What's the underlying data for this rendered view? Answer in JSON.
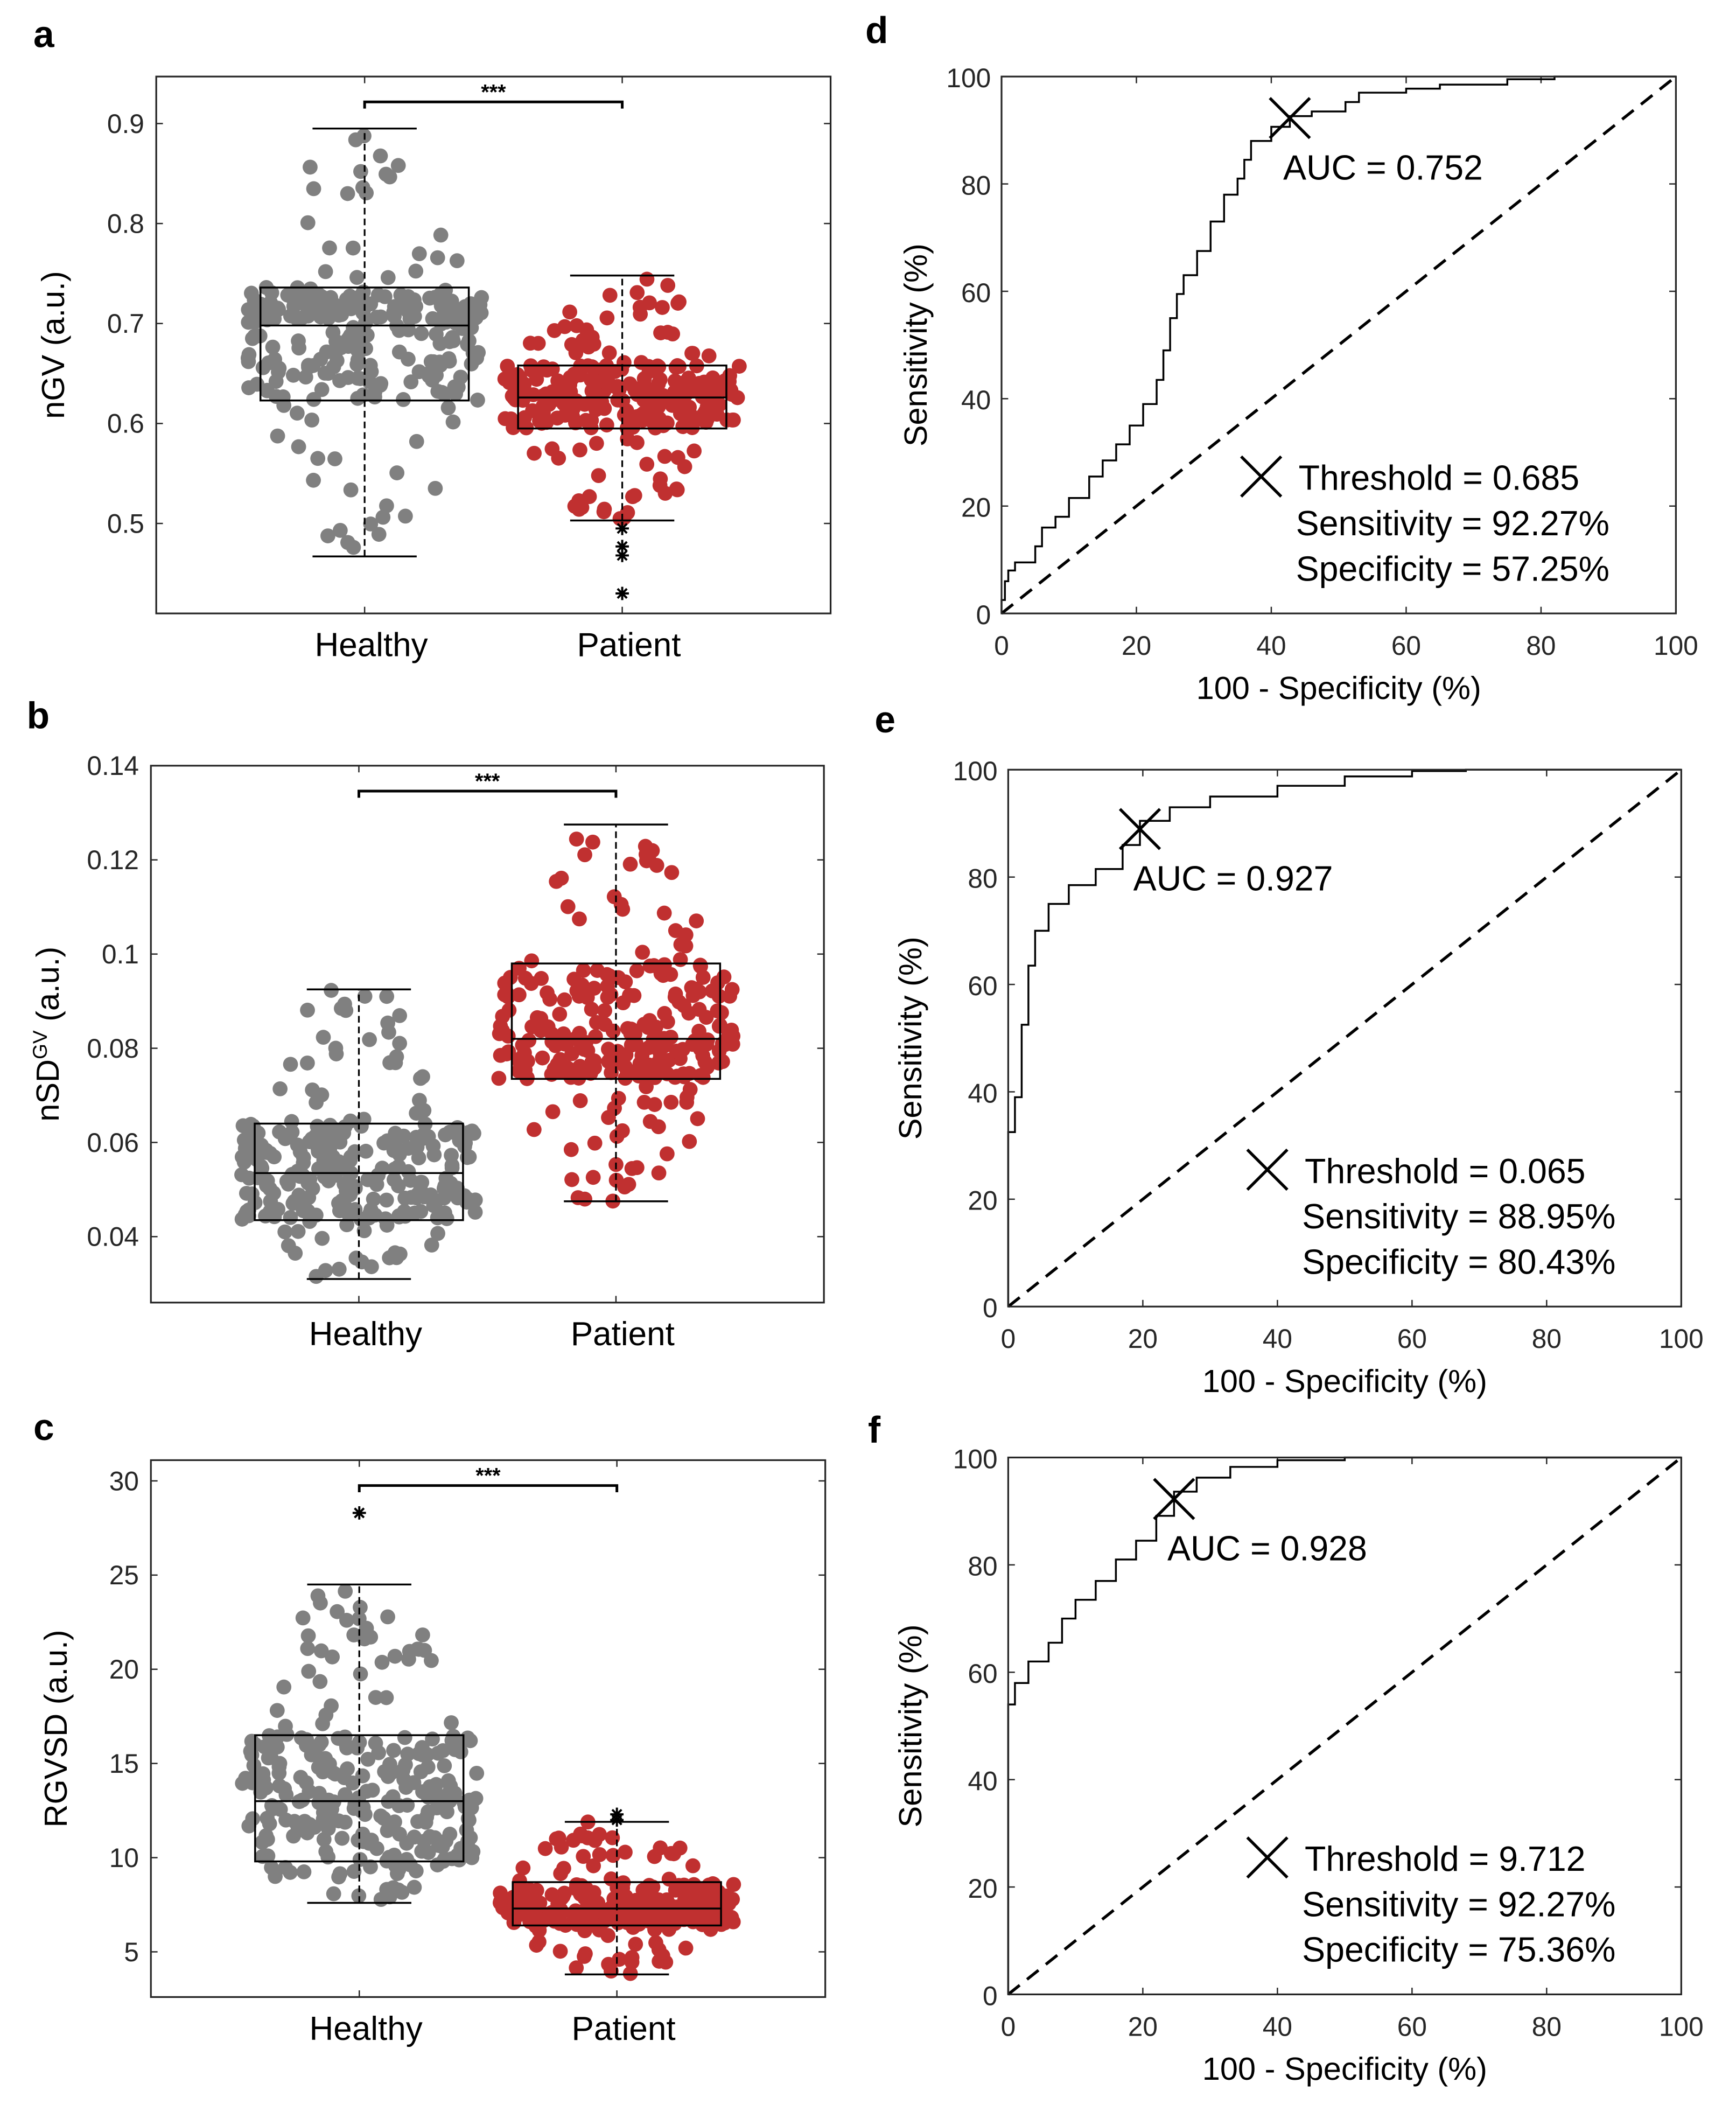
{
  "chart_data": [
    {
      "panel": "a",
      "type": "box-swarm",
      "ylabel": "nGV (a.u.)",
      "ylim": [
        0.41,
        0.947
      ],
      "yticks": [
        "0.5",
        "0.6",
        "0.7",
        "0.8",
        "0.9"
      ],
      "ytick_values": [
        0.5,
        0.6,
        0.7,
        0.8,
        0.9
      ],
      "categories": [
        "Healthy",
        "Patient"
      ],
      "significance": "***",
      "groups": [
        {
          "name": "Healthy",
          "color": "#808080",
          "whisker_low": 0.467,
          "q1": 0.623,
          "median": 0.698,
          "q3": 0.736,
          "whisker_high": 0.895,
          "outliers": []
        },
        {
          "name": "Patient",
          "color": "#c03030",
          "whisker_low": 0.503,
          "q1": 0.595,
          "median": 0.626,
          "q3": 0.658,
          "whisker_high": 0.748,
          "outliers": [
            0.495,
            0.477,
            0.468,
            0.43
          ]
        }
      ]
    },
    {
      "panel": "b",
      "type": "box-swarm",
      "ylabel_main": "nSD",
      "ylabel_sup": "GV",
      "ylabel_tail": " (a.u.)",
      "ylim": [
        0.026,
        0.14
      ],
      "yticks": [
        "0.04",
        "0.06",
        "0.08",
        "0.1",
        "0.12",
        "0.14"
      ],
      "ytick_values": [
        0.04,
        0.06,
        0.08,
        0.1,
        0.12,
        0.14
      ],
      "categories": [
        "Healthy",
        "Patient"
      ],
      "significance": "***",
      "groups": [
        {
          "name": "Healthy",
          "color": "#808080",
          "whisker_low": 0.031,
          "q1": 0.0435,
          "median": 0.0535,
          "q3": 0.064,
          "whisker_high": 0.0925,
          "outliers": []
        },
        {
          "name": "Patient",
          "color": "#c03030",
          "whisker_low": 0.0475,
          "q1": 0.0735,
          "median": 0.082,
          "q3": 0.098,
          "whisker_high": 0.1275,
          "outliers": []
        }
      ]
    },
    {
      "panel": "c",
      "type": "box-swarm",
      "ylabel": "RGVSD (a.u.)",
      "ylim": [
        2.6,
        31.1
      ],
      "yticks": [
        "5",
        "10",
        "15",
        "20",
        "25",
        "30"
      ],
      "ytick_values": [
        5,
        10,
        15,
        20,
        25,
        30
      ],
      "categories": [
        "Healthy",
        "Patient"
      ],
      "significance": "***",
      "groups": [
        {
          "name": "Healthy",
          "color": "#808080",
          "whisker_low": 7.6,
          "q1": 9.8,
          "median": 13.0,
          "q3": 16.5,
          "whisker_high": 24.5,
          "outliers": [
            28.3
          ]
        },
        {
          "name": "Patient",
          "color": "#c03030",
          "whisker_low": 3.8,
          "q1": 6.4,
          "median": 7.3,
          "q3": 8.7,
          "whisker_high": 11.9,
          "outliers": [
            12.3,
            12.0
          ]
        }
      ]
    },
    {
      "panel": "d",
      "type": "line",
      "xlabel": "100 - Specificity (%)",
      "ylabel": "Sensitivity (%)",
      "xlim": [
        0,
        100
      ],
      "ylim": [
        0,
        100
      ],
      "ticks": [
        "0",
        "20",
        "40",
        "60",
        "80",
        "100"
      ],
      "tick_values": [
        0,
        20,
        40,
        60,
        80,
        100
      ],
      "auc_label": "AUC = 0.752",
      "threshold_label": "Threshold = 0.685",
      "sensitivity_label": "Sensitivity = 92.27%",
      "specificity_label": "Specificity = 57.25%",
      "operating_point": [
        42.75,
        92.27
      ],
      "roc": [
        [
          0,
          0
        ],
        [
          0.5,
          5
        ],
        [
          1,
          7
        ],
        [
          2,
          9
        ],
        [
          5,
          10
        ],
        [
          6,
          15
        ],
        [
          8,
          17
        ],
        [
          10,
          19
        ],
        [
          13,
          24
        ],
        [
          15,
          27
        ],
        [
          17,
          30
        ],
        [
          19,
          33
        ],
        [
          21,
          37
        ],
        [
          23,
          41
        ],
        [
          24,
          46
        ],
        [
          25,
          52
        ],
        [
          26,
          58
        ],
        [
          27,
          61
        ],
        [
          29,
          65
        ],
        [
          31,
          70
        ],
        [
          33,
          76
        ],
        [
          35,
          80
        ],
        [
          36,
          82
        ],
        [
          37,
          87
        ],
        [
          40,
          89
        ],
        [
          42.75,
          92.27
        ],
        [
          46,
          93
        ],
        [
          51,
          94
        ],
        [
          53,
          96.5
        ],
        [
          60,
          97.5
        ],
        [
          65,
          98
        ],
        [
          75,
          99
        ],
        [
          82,
          100
        ],
        [
          100,
          100
        ]
      ]
    },
    {
      "panel": "e",
      "type": "line",
      "xlabel": "100 - Specificity (%)",
      "ylabel": "Sensitivity (%)",
      "xlim": [
        0,
        100
      ],
      "ylim": [
        0,
        100
      ],
      "ticks": [
        "0",
        "20",
        "40",
        "60",
        "80",
        "100"
      ],
      "tick_values": [
        0,
        20,
        40,
        60,
        80,
        100
      ],
      "auc_label": "AUC = 0.927",
      "threshold_label": "Threshold = 0.065",
      "sensitivity_label": "Sensitivity = 88.95%",
      "specificity_label": "Specificity = 80.43%",
      "operating_point": [
        19.57,
        88.95
      ],
      "roc": [
        [
          0,
          0
        ],
        [
          0,
          32
        ],
        [
          1,
          33
        ],
        [
          2,
          45
        ],
        [
          3,
          60
        ],
        [
          4,
          67
        ],
        [
          6,
          73
        ],
        [
          9,
          77
        ],
        [
          13,
          80
        ],
        [
          17,
          83
        ],
        [
          19.57,
          88.95
        ],
        [
          24,
          92
        ],
        [
          30,
          94
        ],
        [
          40,
          96
        ],
        [
          50,
          98
        ],
        [
          60,
          99.5
        ],
        [
          68,
          100
        ],
        [
          100,
          100
        ]
      ]
    },
    {
      "panel": "f",
      "type": "line",
      "xlabel": "100 - Specificity (%)",
      "ylabel": "Sensitivity (%)",
      "xlim": [
        0,
        100
      ],
      "ylim": [
        0,
        100
      ],
      "ticks": [
        "0",
        "20",
        "40",
        "60",
        "80",
        "100"
      ],
      "tick_values": [
        0,
        20,
        40,
        60,
        80,
        100
      ],
      "auc_label": "AUC = 0.928",
      "threshold_label": "Threshold = 9.712",
      "sensitivity_label": "Sensitivity = 92.27%",
      "specificity_label": "Specificity = 75.36%",
      "operating_point": [
        24.64,
        92.27
      ],
      "roc": [
        [
          0,
          0
        ],
        [
          0,
          53
        ],
        [
          1,
          55
        ],
        [
          3,
          61
        ],
        [
          6,
          63
        ],
        [
          8,
          68
        ],
        [
          10,
          72
        ],
        [
          13,
          75
        ],
        [
          16,
          79
        ],
        [
          19,
          83
        ],
        [
          22,
          86
        ],
        [
          24.64,
          92.27
        ],
        [
          28,
          95
        ],
        [
          33,
          97.5
        ],
        [
          40,
          99
        ],
        [
          50,
          100
        ],
        [
          100,
          100
        ]
      ]
    }
  ]
}
